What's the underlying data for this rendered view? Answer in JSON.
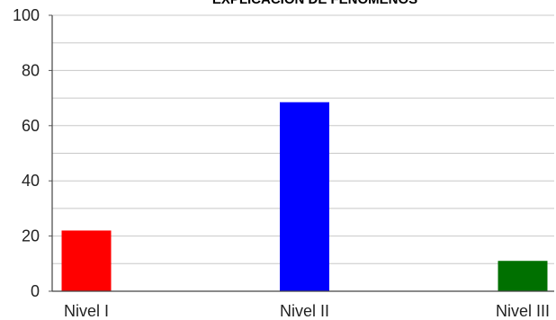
{
  "chart_data": {
    "type": "bar",
    "title": "EXPLICACION DE FENOMENOS",
    "xlabel": "",
    "ylabel": "",
    "categories": [
      "Nivel I",
      "Nivel II",
      "Nivel III"
    ],
    "values": [
      22,
      68.5,
      11
    ],
    "colors": [
      "#ff0000",
      "#0000ff",
      "#007000"
    ],
    "ylim": [
      0,
      100
    ],
    "yticks": [
      "0",
      "20",
      "40",
      "60",
      "80",
      "100"
    ],
    "grid": true,
    "legend": "none"
  }
}
